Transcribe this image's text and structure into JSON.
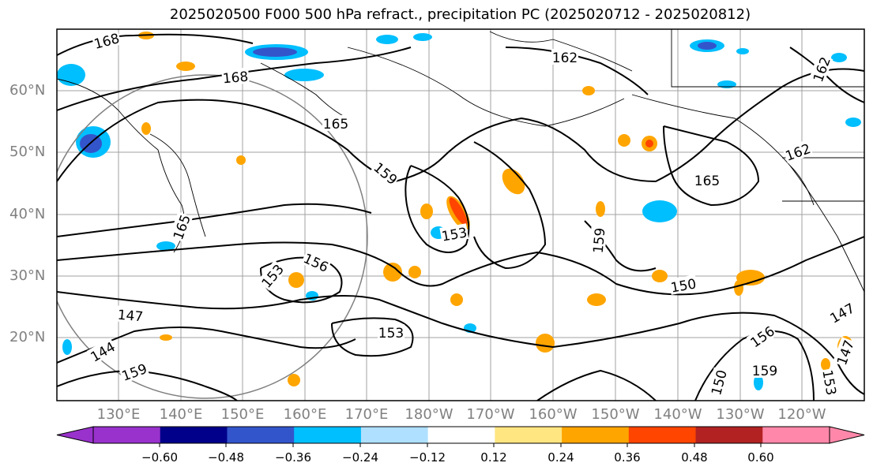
{
  "title": "2025020500 F000 500 hPa refract., precipitation PC (2025020712 - 2025020812)",
  "map": {
    "lat_labels": [
      "60°N",
      "50°N",
      "40°N",
      "30°N",
      "20°N"
    ],
    "lon_labels": [
      "130°E",
      "140°E",
      "150°E",
      "160°E",
      "170°E",
      "180°W",
      "170°W",
      "160°W",
      "150°W",
      "140°W",
      "130°W",
      "120°W"
    ],
    "contour_labels": [
      "168",
      "168",
      "162",
      "162",
      "165",
      "165",
      "162",
      "159",
      "159",
      "153",
      "156",
      "153",
      "150",
      "147",
      "144",
      "153",
      "156",
      "159",
      "150",
      "153",
      "147",
      "147",
      "165",
      "159"
    ],
    "contour_color": "#000000",
    "gridline_color": "#a0a0a0",
    "coastline_color": "#000000",
    "range_ring_color": "#808080"
  },
  "colorbar": {
    "ticks": [
      "−0.60",
      "−0.48",
      "−0.36",
      "−0.24",
      "−0.12",
      "0.12",
      "0.24",
      "0.36",
      "0.48",
      "0.60"
    ],
    "colors": [
      "#9932cc",
      "#00008b",
      "#3355cc",
      "#00bfff",
      "#b0e0ff",
      "#ffffff",
      "#ffe680",
      "#ffa500",
      "#ff4500",
      "#b22222",
      "#ff88aa"
    ]
  }
}
